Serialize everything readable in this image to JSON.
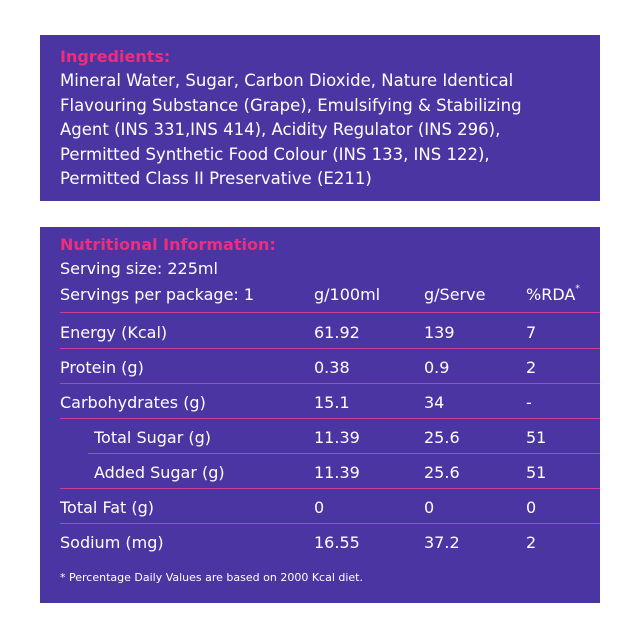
{
  "ingredients": {
    "heading": "Ingredients:",
    "lines": [
      "Mineral Water, Sugar, Carbon Dioxide, Nature Identical",
      "Flavouring Substance (Grape), Emulsifying & Stabilizing",
      "Agent (INS 331,INS 414), Acidity Regulator (INS 296),",
      "Permitted Synthetic Food Colour (INS 133, INS 122),",
      "Permitted Class II Preservative (E211)"
    ]
  },
  "nutrition": {
    "heading": "Nutritional Information:",
    "serving_size": "Serving size: 225ml",
    "servings_per_package": "Servings per package: 1",
    "columns": {
      "per100": "g/100ml",
      "perserve": "g/Serve",
      "rda": "%RDA",
      "rda_mark": "*"
    },
    "rows": [
      {
        "label": "Energy (Kcal)",
        "per100": "61.92",
        "perserve": "139",
        "rda": "7"
      },
      {
        "label": "Protein (g)",
        "per100": "0.38",
        "perserve": "0.9",
        "rda": "2"
      },
      {
        "label": "Carbohydrates (g)",
        "per100": "15.1",
        "perserve": "34",
        "rda": "-"
      },
      {
        "label": "Total Sugar (g)",
        "per100": "11.39",
        "perserve": "25.6",
        "rda": "51"
      },
      {
        "label": "Added Sugar (g)",
        "per100": "11.39",
        "perserve": "25.6",
        "rda": "51"
      },
      {
        "label": "Total Fat (g)",
        "per100": "0",
        "perserve": "0",
        "rda": "0"
      },
      {
        "label": "Sodium (mg)",
        "per100": "16.55",
        "perserve": "37.2",
        "rda": "2"
      }
    ],
    "footnote": "* Percentage Daily Values are based on 2000 Kcal diet."
  },
  "colors": {
    "panel": "#4a35a3",
    "heading": "#ee2e7c",
    "divider": "#c93f93",
    "text": "#ffffff"
  }
}
